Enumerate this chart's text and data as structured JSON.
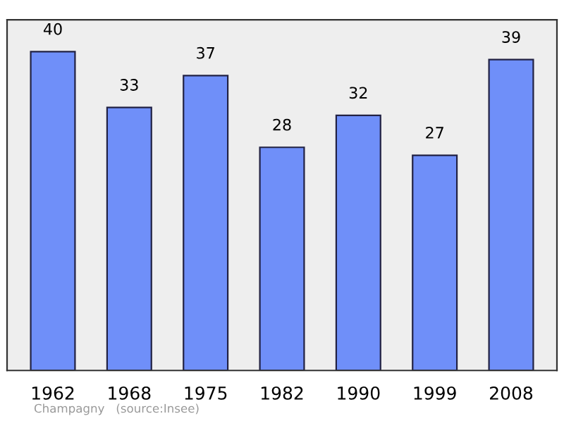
{
  "chart_data": {
    "type": "bar",
    "categories": [
      "1962",
      "1968",
      "1975",
      "1982",
      "1990",
      "1999",
      "2008"
    ],
    "values": [
      40,
      33,
      37,
      28,
      32,
      27,
      39
    ],
    "color": "#6f8ff9",
    "data_labels": true,
    "grid": false,
    "annotations": [
      "Champagny   (source:Insee)"
    ]
  }
}
